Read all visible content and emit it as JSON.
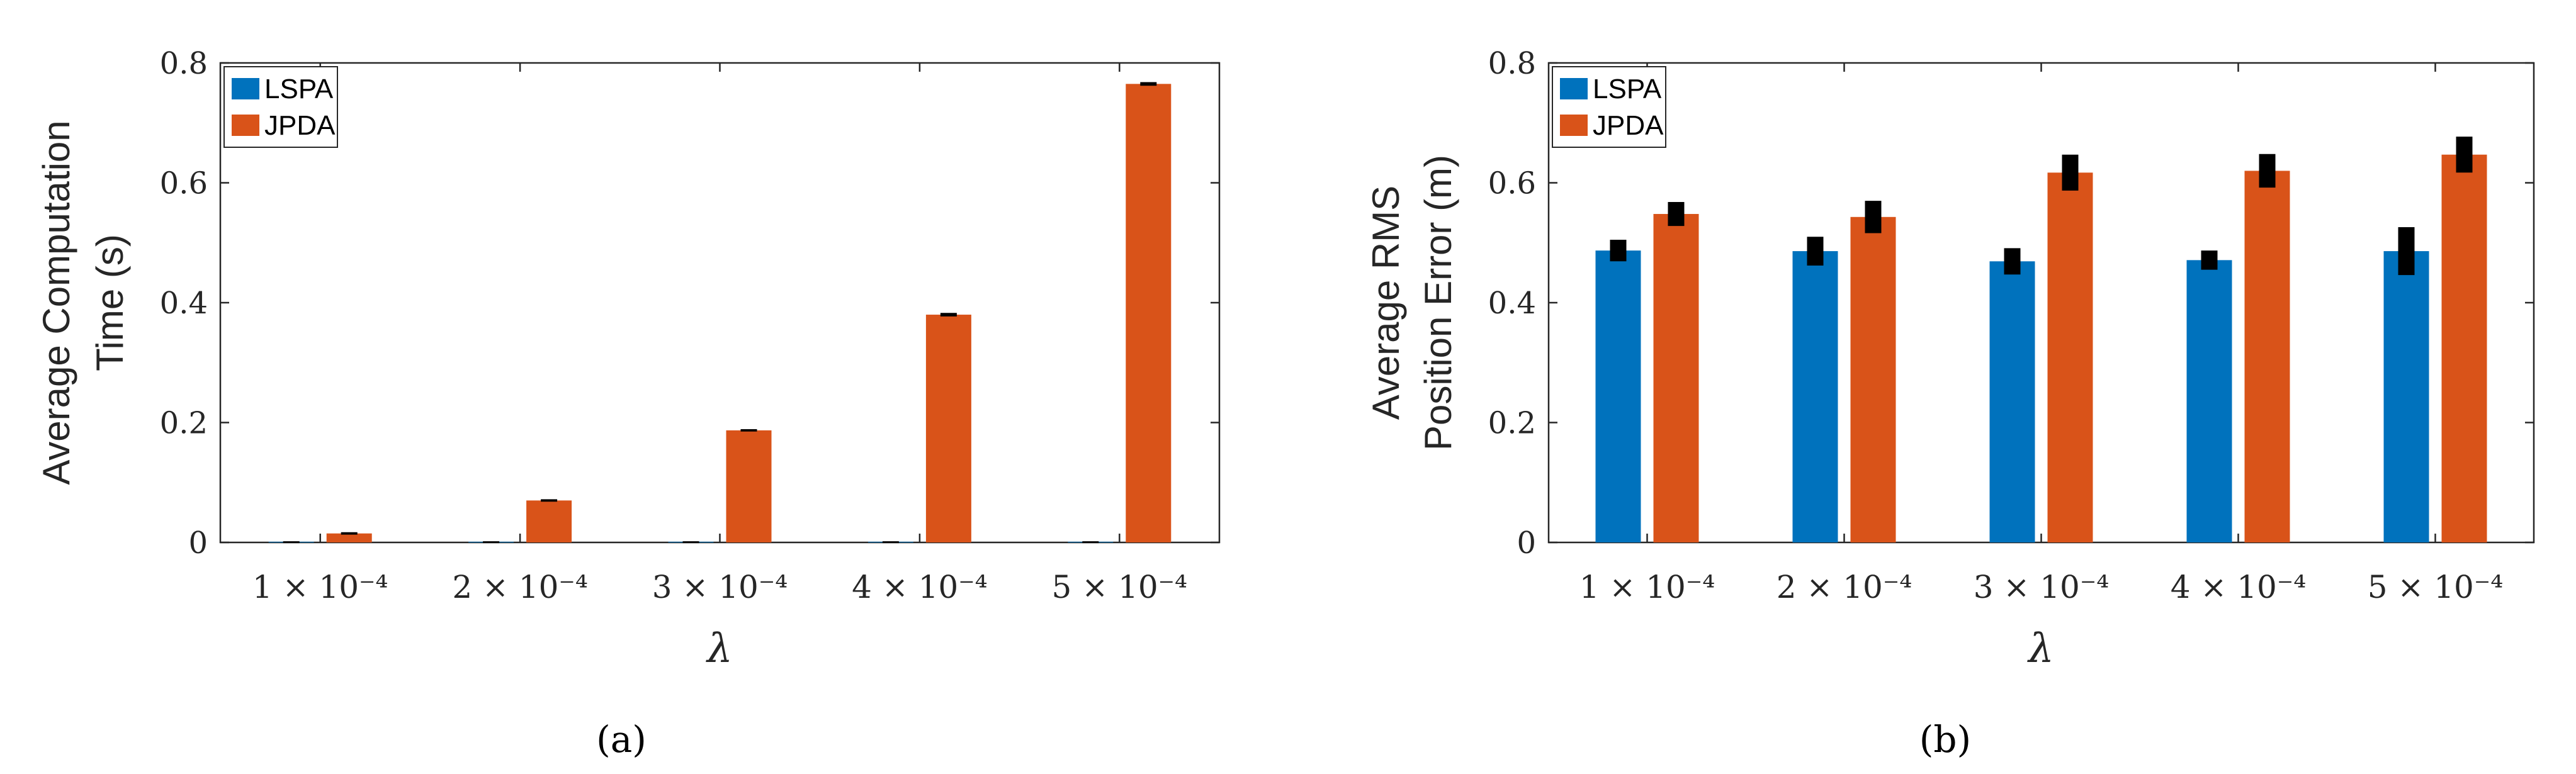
{
  "chart_data": [
    {
      "type": "bar",
      "panel_label": "(a)",
      "categories": [
        "1 × 10⁻⁴",
        "2 × 10⁻⁴",
        "3 × 10⁻⁴",
        "4 × 10⁻⁴",
        "5 × 10⁻⁴"
      ],
      "xlabel": "λ",
      "ylabel_lines": [
        "Average Computation",
        "Time (s)"
      ],
      "ylim": [
        0,
        0.8
      ],
      "yticks": [
        0,
        0.2,
        0.4,
        0.6,
        0.8
      ],
      "ytick_labels": [
        "0",
        "0.2",
        "0.4",
        "0.6",
        "0.8"
      ],
      "legend_position": "top-left",
      "series": [
        {
          "name": "LSPA",
          "color": "#0072BD",
          "values": [
            0.001,
            0.001,
            0.001,
            0.001,
            0.001
          ],
          "errors": [
            0.001,
            0.001,
            0.001,
            0.001,
            0.001
          ]
        },
        {
          "name": "JPDA",
          "color": "#D95319",
          "values": [
            0.015,
            0.07,
            0.187,
            0.38,
            0.765
          ],
          "errors": [
            0.002,
            0.002,
            0.002,
            0.003,
            0.003
          ]
        }
      ]
    },
    {
      "type": "bar",
      "panel_label": "(b)",
      "categories": [
        "1 × 10⁻⁴",
        "2 × 10⁻⁴",
        "3 × 10⁻⁴",
        "4 × 10⁻⁴",
        "5 × 10⁻⁴"
      ],
      "xlabel": "λ",
      "ylabel_lines": [
        "Average RMS",
        "Position Error (m)"
      ],
      "ylim": [
        0,
        0.8
      ],
      "yticks": [
        0,
        0.2,
        0.4,
        0.6,
        0.8
      ],
      "ytick_labels": [
        "0",
        "0.2",
        "0.4",
        "0.6",
        "0.8"
      ],
      "legend_position": "top-left",
      "series": [
        {
          "name": "LSPA",
          "color": "#0072BD",
          "values": [
            0.487,
            0.486,
            0.469,
            0.471,
            0.486
          ],
          "errors": [
            0.018,
            0.024,
            0.022,
            0.016,
            0.04
          ]
        },
        {
          "name": "JPDA",
          "color": "#D95319",
          "values": [
            0.548,
            0.543,
            0.617,
            0.62,
            0.647
          ],
          "errors": [
            0.02,
            0.027,
            0.03,
            0.028,
            0.03
          ]
        }
      ]
    }
  ]
}
